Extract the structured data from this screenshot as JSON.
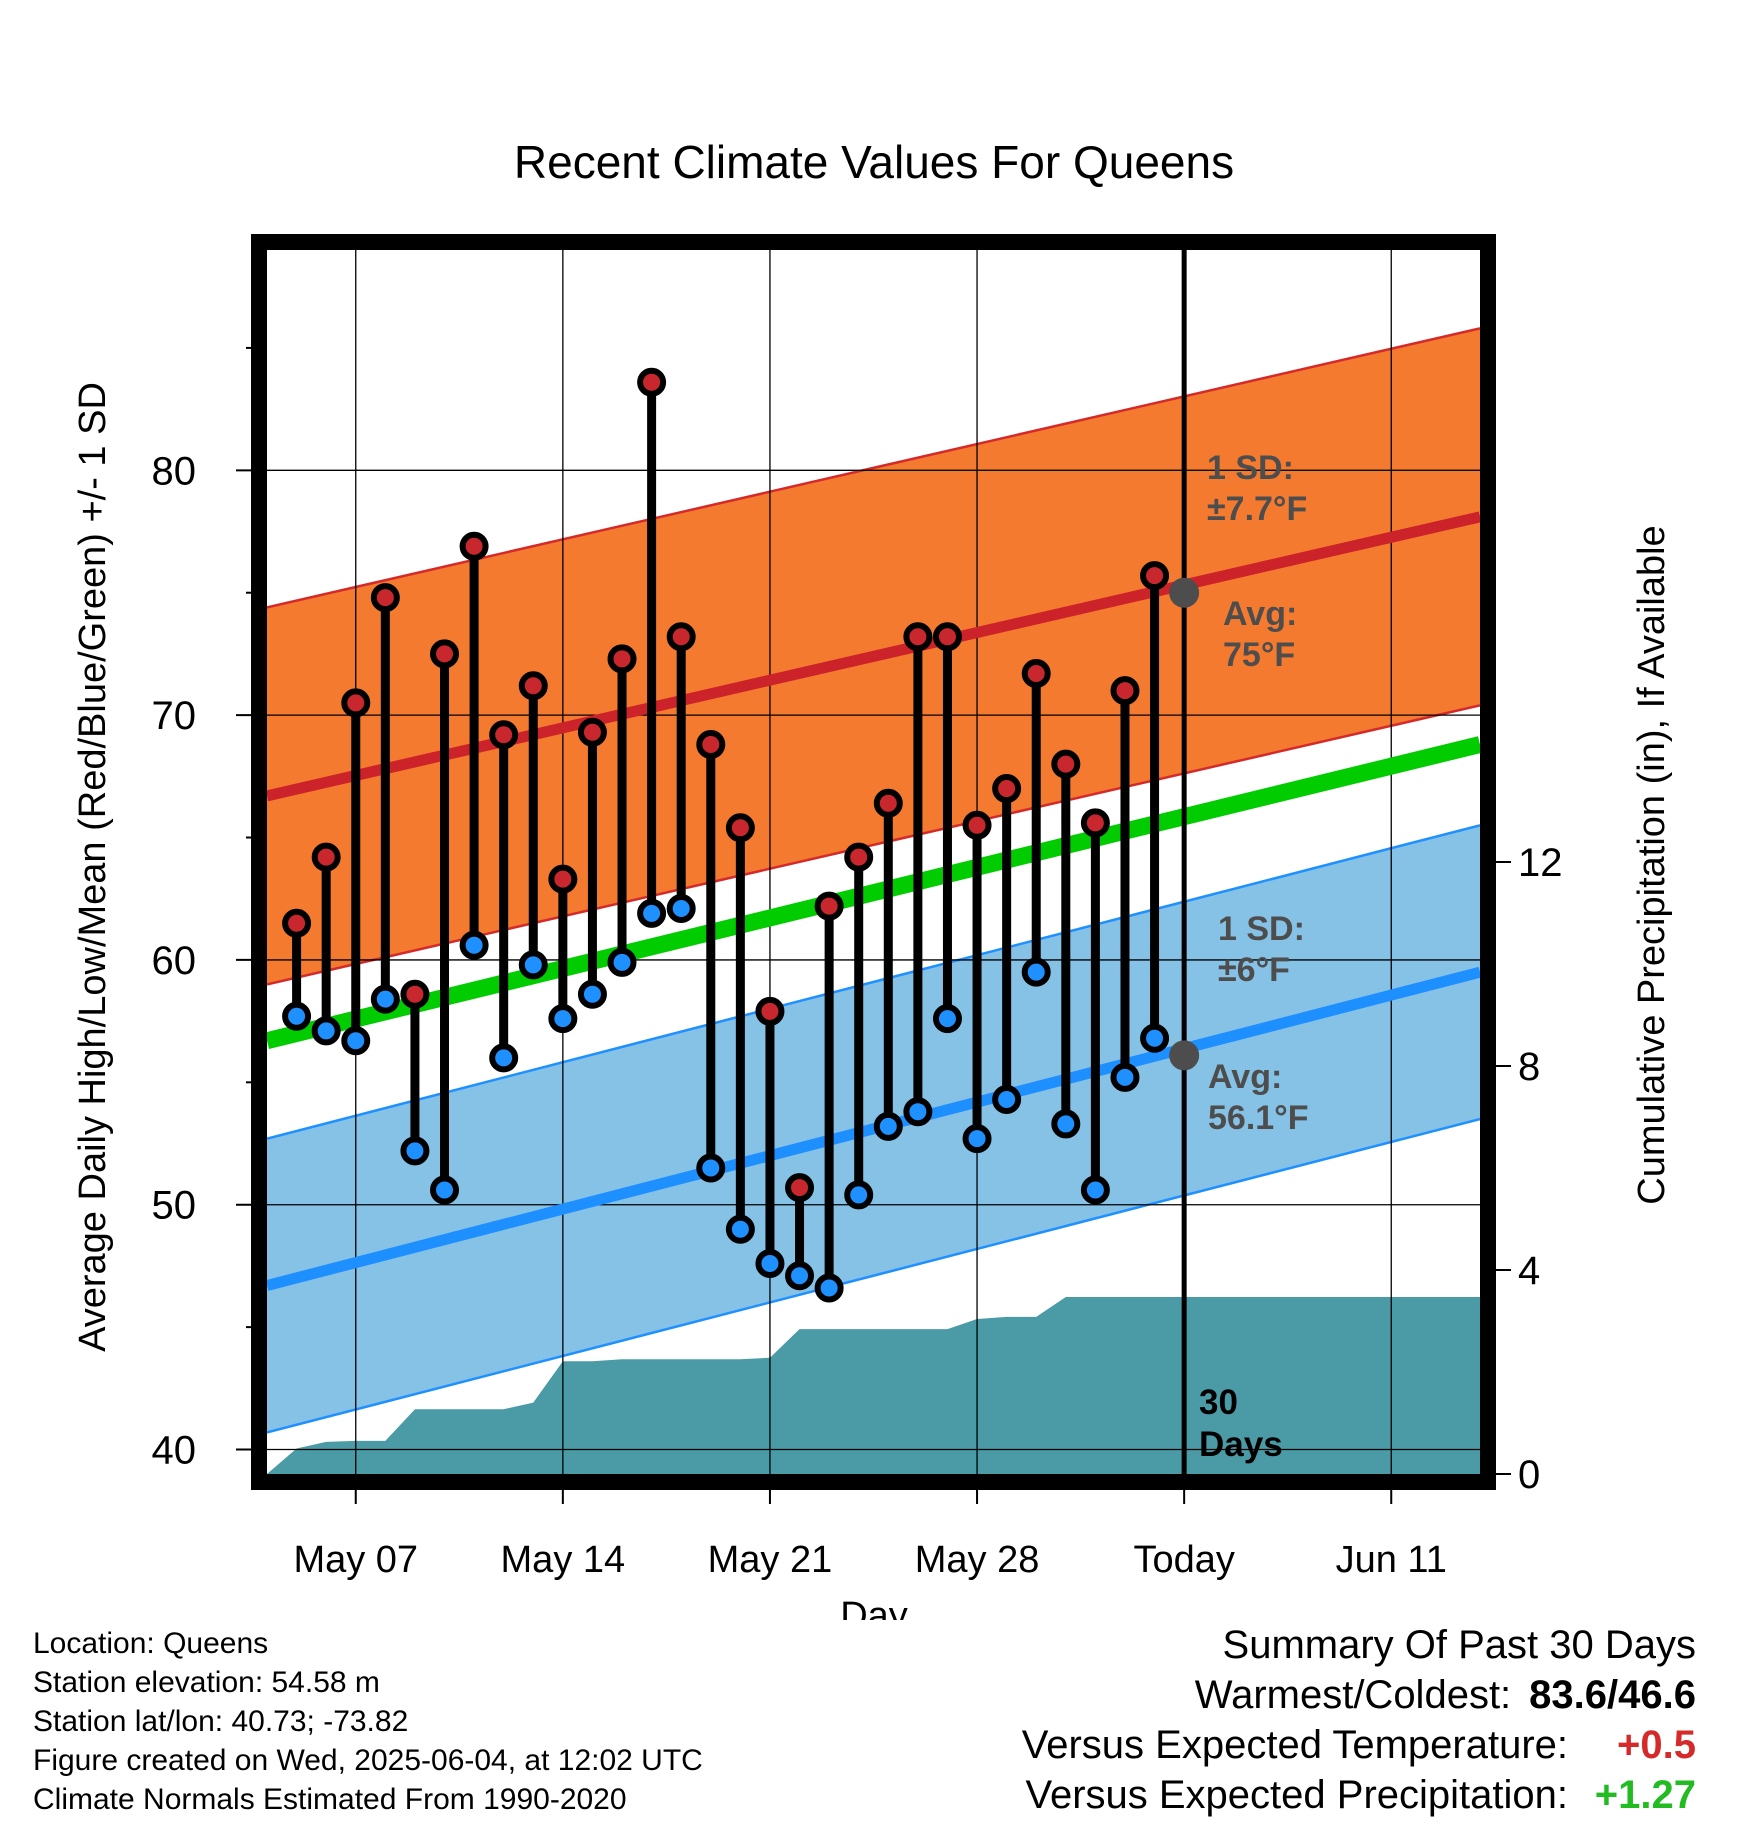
{
  "chart_data": {
    "type": "line",
    "title": "Recent Climate Values For Queens",
    "xlabel": "Day",
    "ylabel": "Average Daily High/Low/Mean (Red/Blue/Green) +/- 1 SD",
    "y2label": "Cumulative Precipitation (in), If Available",
    "ylim": [
      39,
      89
    ],
    "y2lim": [
      0,
      24
    ],
    "yticks": [
      "40",
      "50",
      "60",
      "70",
      "80"
    ],
    "y2ticks": [
      "0",
      "4",
      "8",
      "12"
    ],
    "xlim": [
      "2025-05-04",
      "2025-06-14"
    ],
    "xticks": [
      {
        "date": "2025-05-07",
        "label": "May 07"
      },
      {
        "date": "2025-05-14",
        "label": "May 14"
      },
      {
        "date": "2025-05-21",
        "label": "May 21"
      },
      {
        "date": "2025-05-28",
        "label": "May 28"
      },
      {
        "date": "2025-06-04",
        "label": "Today"
      },
      {
        "date": "2025-06-11",
        "label": "Jun 11"
      }
    ],
    "grid": true,
    "today": "2025-06-04",
    "normals": {
      "start": "2025-05-04",
      "end": "2025-06-14",
      "high_avg": [
        66.7,
        78.1
      ],
      "high_sd": 7.7,
      "low_avg": [
        46.7,
        59.5
      ],
      "low_sd": 6.0,
      "mean_avg": [
        56.7,
        68.8
      ]
    },
    "days": [
      "2025-05-05",
      "2025-05-06",
      "2025-05-07",
      "2025-05-08",
      "2025-05-09",
      "2025-05-10",
      "2025-05-11",
      "2025-05-12",
      "2025-05-13",
      "2025-05-14",
      "2025-05-15",
      "2025-05-16",
      "2025-05-17",
      "2025-05-18",
      "2025-05-19",
      "2025-05-20",
      "2025-05-21",
      "2025-05-22",
      "2025-05-23",
      "2025-05-24",
      "2025-05-25",
      "2025-05-26",
      "2025-05-27",
      "2025-05-28",
      "2025-05-29",
      "2025-05-30",
      "2025-05-31",
      "2025-06-01",
      "2025-06-02",
      "2025-06-03"
    ],
    "series": [
      {
        "name": "High",
        "color": "#c8282d",
        "values": [
          61.5,
          64.2,
          70.5,
          74.8,
          58.6,
          72.5,
          76.9,
          69.2,
          71.2,
          63.3,
          69.3,
          72.3,
          83.6,
          73.2,
          68.8,
          65.4,
          57.9,
          50.7,
          62.2,
          64.2,
          66.4,
          73.2,
          73.2,
          65.5,
          67.0,
          71.7,
          68.0,
          65.6,
          71.0,
          75.7
        ]
      },
      {
        "name": "Low",
        "color": "#1e90ff",
        "values": [
          57.7,
          57.1,
          56.7,
          58.4,
          52.2,
          50.6,
          60.6,
          56.0,
          59.8,
          57.6,
          58.6,
          59.9,
          61.9,
          62.1,
          51.5,
          49.0,
          47.6,
          47.1,
          46.6,
          50.4,
          53.2,
          53.8,
          57.6,
          52.7,
          54.3,
          59.5,
          53.3,
          50.6,
          55.2,
          56.8
        ]
      }
    ],
    "precip": {
      "dates": [
        "2025-05-04",
        "2025-05-05",
        "2025-05-06",
        "2025-05-07",
        "2025-05-08",
        "2025-05-09",
        "2025-05-10",
        "2025-05-11",
        "2025-05-12",
        "2025-05-13",
        "2025-05-14",
        "2025-05-15",
        "2025-05-16",
        "2025-05-17",
        "2025-05-18",
        "2025-05-19",
        "2025-05-20",
        "2025-05-21",
        "2025-05-22",
        "2025-05-23",
        "2025-05-24",
        "2025-05-25",
        "2025-05-26",
        "2025-05-27",
        "2025-05-28",
        "2025-05-29",
        "2025-05-30",
        "2025-05-31",
        "2025-06-01",
        "2025-06-04",
        "2025-06-14"
      ],
      "values": [
        0.0,
        0.5,
        0.63,
        0.65,
        0.65,
        1.27,
        1.27,
        1.27,
        1.27,
        1.4,
        2.21,
        2.21,
        2.25,
        2.25,
        2.25,
        2.25,
        2.25,
        2.28,
        2.84,
        2.84,
        2.84,
        2.84,
        2.84,
        2.84,
        3.04,
        3.08,
        3.08,
        3.47,
        3.47,
        3.47,
        3.47
      ]
    },
    "annotations": {
      "high_sd": "1 SD:\n±7.7°F",
      "high_avg": "Avg:\n75°F",
      "low_sd": "1 SD:\n±6°F",
      "low_avg": "Avg:\n56.1°F",
      "days": "30\nDays",
      "today_high": 75.0,
      "today_low": 56.1
    }
  },
  "info": {
    "location": "Location: Queens",
    "elevation": "Station elevation: 54.58 m",
    "latlon": "Station lat/lon: 40.73; -73.82",
    "created": "Figure created on Wed, 2025-06-04, at 12:02 UTC",
    "normals": "Climate Normals Estimated From 1990-2020"
  },
  "summary": {
    "title": "Summary Of Past 30 Days",
    "warmest_label": "Warmest/Coldest:",
    "warmest_value": "83.6/46.6",
    "temp_label": "Versus Expected Temperature:",
    "temp_value": "+0.5",
    "temp_color": "#d42a2a",
    "precip_label": "Versus Expected Precipitation:",
    "precip_value": "+1.27",
    "precip_color": "#22bb22"
  }
}
